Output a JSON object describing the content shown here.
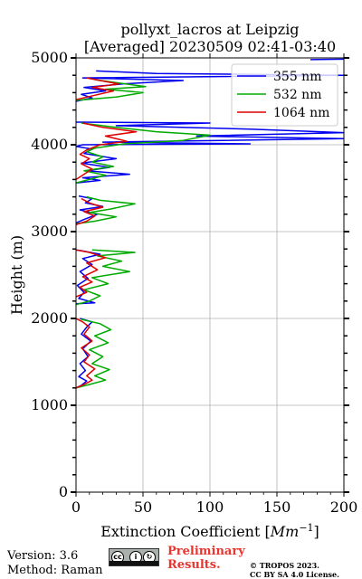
{
  "chart_data": {
    "type": "line",
    "title_line1": "pollyxt_lacros at Leipzig",
    "title_line2": "[Averaged] 20230509 02:41-03:40",
    "xlabel_text": "Extinction Coefficient [",
    "xlabel_unit": "Mm",
    "xlabel_exp": "−1",
    "xlabel_close": "]",
    "ylabel": "Height (m)",
    "xlim": [
      0,
      200
    ],
    "ylim": [
      0,
      5000
    ],
    "xticks": [
      0,
      50,
      100,
      150,
      200
    ],
    "yticks": [
      0,
      1000,
      2000,
      3000,
      4000,
      5000
    ],
    "xtick_labels": [
      "0",
      "50",
      "100",
      "150",
      "200"
    ],
    "ytick_labels": [
      "0",
      "1000",
      "2000",
      "3000",
      "4000",
      "5000"
    ],
    "grid": true,
    "legend_position": "top-right",
    "series": [
      {
        "name": "355 nm",
        "color": "#0000ee",
        "points": [
          [
            0,
            1200
          ],
          [
            4,
            1230
          ],
          [
            8,
            1280
          ],
          [
            2,
            1330
          ],
          [
            7,
            1400
          ],
          [
            3,
            1480
          ],
          [
            9,
            1560
          ],
          [
            5,
            1650
          ],
          [
            11,
            1740
          ],
          [
            4,
            1820
          ],
          [
            8,
            1900
          ],
          [
            12,
            1960
          ],
          [
            3,
            2000
          ],
          [
            null,
            null
          ],
          [
            0,
            2170
          ],
          [
            14,
            2180
          ],
          [
            2,
            2230
          ],
          [
            6,
            2300
          ],
          [
            1,
            2380
          ],
          [
            9,
            2460
          ],
          [
            3,
            2540
          ],
          [
            12,
            2620
          ],
          [
            5,
            2690
          ],
          [
            18,
            2740
          ],
          [
            4,
            2780
          ],
          [
            0,
            2790
          ],
          [
            null,
            null
          ],
          [
            0,
            3100
          ],
          [
            6,
            3140
          ],
          [
            16,
            3200
          ],
          [
            3,
            3250
          ],
          [
            20,
            3290
          ],
          [
            7,
            3330
          ],
          [
            12,
            3380
          ],
          [
            2,
            3410
          ],
          [
            null,
            null
          ],
          [
            0,
            3560
          ],
          [
            18,
            3590
          ],
          [
            5,
            3620
          ],
          [
            40,
            3660
          ],
          [
            8,
            3700
          ],
          [
            25,
            3740
          ],
          [
            4,
            3790
          ],
          [
            30,
            3840
          ],
          [
            6,
            3900
          ],
          [
            12,
            3950
          ],
          [
            0,
            3980
          ],
          [
            5,
            4000
          ],
          [
            130,
            4010
          ],
          [
            20,
            4030
          ],
          [
            200,
            4070
          ],
          [
            90,
            4100
          ],
          [
            200,
            4140
          ],
          [
            130,
            4180
          ],
          [
            30,
            4220
          ],
          [
            100,
            4250
          ],
          [
            0,
            4260
          ],
          [
            null,
            null
          ],
          [
            0,
            4500
          ],
          [
            12,
            4540
          ],
          [
            4,
            4580
          ],
          [
            22,
            4620
          ],
          [
            6,
            4660
          ],
          [
            35,
            4700
          ],
          [
            80,
            4740
          ],
          [
            5,
            4770
          ],
          [
            200,
            4800
          ],
          [
            60,
            4820
          ],
          [
            15,
            4850
          ],
          [
            null,
            null
          ],
          [
            175,
            4980
          ],
          [
            200,
            4985
          ]
        ]
      },
      {
        "name": "532 nm",
        "color": "#00aa00",
        "points": [
          [
            0,
            1200
          ],
          [
            10,
            1240
          ],
          [
            22,
            1290
          ],
          [
            14,
            1340
          ],
          [
            25,
            1410
          ],
          [
            12,
            1480
          ],
          [
            20,
            1560
          ],
          [
            10,
            1640
          ],
          [
            24,
            1720
          ],
          [
            14,
            1800
          ],
          [
            26,
            1870
          ],
          [
            18,
            1940
          ],
          [
            4,
            1990
          ],
          [
            null,
            null
          ],
          [
            0,
            2160
          ],
          [
            10,
            2200
          ],
          [
            18,
            2260
          ],
          [
            6,
            2330
          ],
          [
            24,
            2400
          ],
          [
            12,
            2470
          ],
          [
            40,
            2540
          ],
          [
            20,
            2600
          ],
          [
            34,
            2660
          ],
          [
            16,
            2720
          ],
          [
            44,
            2760
          ],
          [
            12,
            2790
          ],
          [
            null,
            null
          ],
          [
            0,
            3090
          ],
          [
            14,
            3120
          ],
          [
            30,
            3170
          ],
          [
            10,
            3220
          ],
          [
            26,
            3260
          ],
          [
            44,
            3320
          ],
          [
            18,
            3360
          ],
          [
            8,
            3400
          ],
          [
            null,
            null
          ],
          [
            0,
            3560
          ],
          [
            10,
            3600
          ],
          [
            22,
            3650
          ],
          [
            6,
            3700
          ],
          [
            28,
            3750
          ],
          [
            12,
            3800
          ],
          [
            20,
            3860
          ],
          [
            8,
            3920
          ],
          [
            14,
            3960
          ],
          [
            36,
            4010
          ],
          [
            80,
            4050
          ],
          [
            100,
            4110
          ],
          [
            60,
            4150
          ],
          [
            30,
            4200
          ],
          [
            4,
            4250
          ],
          [
            null,
            null
          ],
          [
            0,
            4510
          ],
          [
            30,
            4550
          ],
          [
            50,
            4600
          ],
          [
            22,
            4640
          ],
          [
            52,
            4670
          ],
          [
            32,
            4710
          ],
          [
            14,
            4750
          ]
        ]
      },
      {
        "name": "1064 nm",
        "color": "#dd0000",
        "points": [
          [
            0,
            1200
          ],
          [
            6,
            1240
          ],
          [
            12,
            1290
          ],
          [
            8,
            1340
          ],
          [
            14,
            1420
          ],
          [
            6,
            1500
          ],
          [
            10,
            1580
          ],
          [
            4,
            1660
          ],
          [
            12,
            1740
          ],
          [
            6,
            1820
          ],
          [
            10,
            1900
          ],
          [
            5,
            1960
          ],
          [
            0,
            2000
          ],
          [
            null,
            null
          ],
          [
            0,
            2250
          ],
          [
            8,
            2300
          ],
          [
            3,
            2360
          ],
          [
            12,
            2420
          ],
          [
            5,
            2480
          ],
          [
            16,
            2560
          ],
          [
            8,
            2640
          ],
          [
            22,
            2700
          ],
          [
            10,
            2760
          ],
          [
            0,
            2790
          ],
          [
            null,
            null
          ],
          [
            0,
            3080
          ],
          [
            8,
            3120
          ],
          [
            14,
            3180
          ],
          [
            6,
            3230
          ],
          [
            20,
            3280
          ],
          [
            10,
            3330
          ],
          [
            4,
            3380
          ],
          [
            null,
            null
          ],
          [
            0,
            3600
          ],
          [
            6,
            3660
          ],
          [
            12,
            3720
          ],
          [
            4,
            3780
          ],
          [
            10,
            3840
          ],
          [
            3,
            3890
          ],
          [
            8,
            3940
          ],
          [
            18,
            4000
          ],
          [
            38,
            4040
          ],
          [
            22,
            4100
          ],
          [
            45,
            4150
          ],
          [
            20,
            4200
          ],
          [
            5,
            4250
          ],
          [
            null,
            null
          ],
          [
            0,
            4520
          ],
          [
            14,
            4570
          ],
          [
            28,
            4620
          ],
          [
            12,
            4660
          ],
          [
            32,
            4700
          ],
          [
            18,
            4740
          ],
          [
            8,
            4770
          ]
        ]
      }
    ]
  },
  "footer": {
    "version": "Version: 3.6",
    "method": "Method: Raman",
    "preliminary_line1": "Preliminary",
    "preliminary_line2": "Results.",
    "copyright_line1": "© TROPOS 2023.",
    "copyright_line2": "CC BY SA 4.0 License.",
    "badge_glyphs": [
      "cc",
      "i",
      "↻"
    ]
  }
}
